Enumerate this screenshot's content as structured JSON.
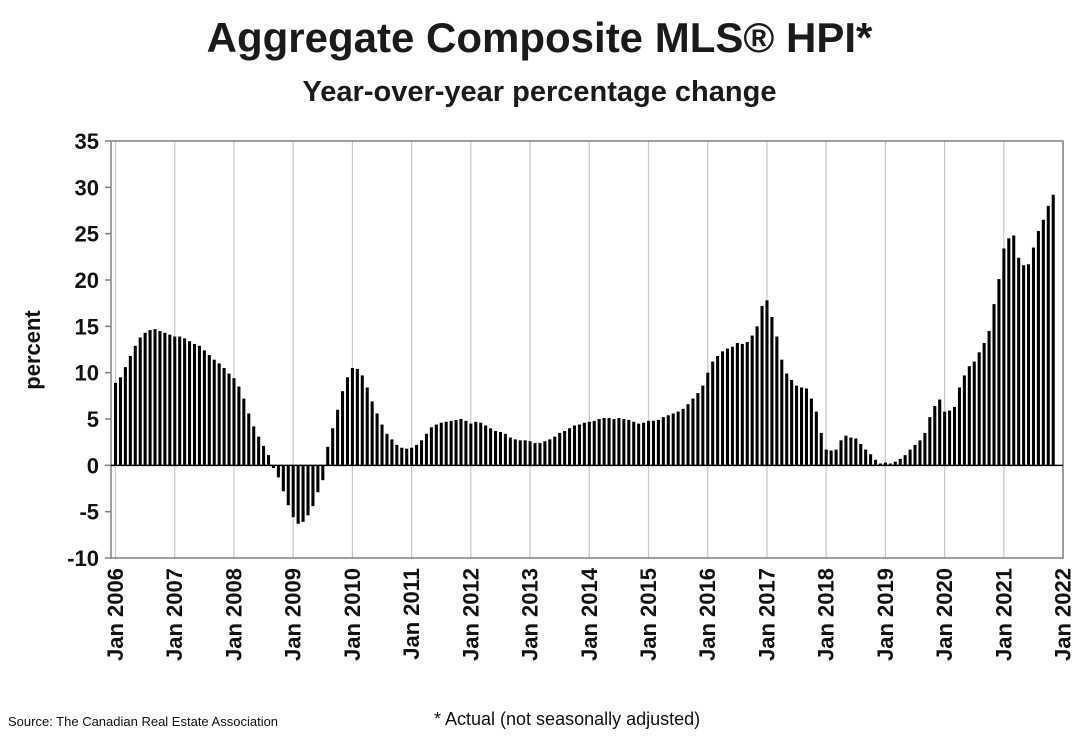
{
  "chart_data": {
    "type": "bar",
    "title": "Aggregate Composite MLS® HPI*",
    "subtitle": "Year-over-year percentage change",
    "ylabel": "percent",
    "xlabel": "",
    "ylim": [
      -10,
      35
    ],
    "yticks": [
      35,
      30,
      25,
      20,
      15,
      10,
      5,
      0,
      -5,
      -10
    ],
    "xtick_labels": [
      "Jan 2006",
      "Jan 2007",
      "Jan 2008",
      "Jan 2009",
      "Jan 2010",
      "Jan 2011",
      "Jan 2012",
      "Jan 2013",
      "Jan 2014",
      "Jan 2015",
      "Jan 2016",
      "Jan 2017",
      "Jan 2018",
      "Jan 2019",
      "Jan 2020",
      "Jan 2021",
      "Jan 2022"
    ],
    "grid": "vertical",
    "start": "Jan 2006",
    "frequency": "monthly",
    "values": [
      8.9,
      9.5,
      10.6,
      11.8,
      12.9,
      13.8,
      14.3,
      14.6,
      14.7,
      14.5,
      14.3,
      14.1,
      13.9,
      13.9,
      13.7,
      13.4,
      13.1,
      12.9,
      12.4,
      11.9,
      11.4,
      11.0,
      10.5,
      9.9,
      9.4,
      8.5,
      7.2,
      5.6,
      4.2,
      3.1,
      2.1,
      1.1,
      -0.3,
      -1.3,
      -2.8,
      -4.3,
      -5.6,
      -6.3,
      -6.1,
      -5.4,
      -4.4,
      -2.9,
      -1.6,
      2.0,
      4.0,
      6.0,
      8.0,
      9.5,
      10.5,
      10.4,
      9.7,
      8.4,
      6.9,
      5.6,
      4.4,
      3.4,
      2.8,
      2.2,
      1.9,
      1.8,
      1.9,
      2.2,
      2.7,
      3.4,
      4.1,
      4.4,
      4.6,
      4.7,
      4.8,
      4.9,
      5.0,
      4.8,
      4.5,
      4.7,
      4.6,
      4.3,
      4.0,
      3.7,
      3.6,
      3.4,
      3.0,
      2.8,
      2.7,
      2.7,
      2.6,
      2.4,
      2.4,
      2.6,
      2.8,
      3.1,
      3.5,
      3.7,
      4.0,
      4.3,
      4.4,
      4.6,
      4.7,
      4.8,
      5.0,
      5.1,
      5.1,
      5.0,
      5.1,
      5.0,
      4.9,
      4.7,
      4.5,
      4.6,
      4.8,
      4.8,
      4.9,
      5.2,
      5.4,
      5.6,
      5.8,
      6.1,
      6.6,
      7.2,
      7.8,
      8.6,
      10.0,
      11.2,
      11.8,
      12.3,
      12.6,
      12.8,
      13.2,
      13.1,
      13.3,
      14.0,
      15.0,
      17.2,
      17.8,
      16.0,
      13.9,
      11.4,
      9.9,
      9.2,
      8.6,
      8.4,
      8.3,
      7.2,
      5.8,
      3.5,
      1.7,
      1.6,
      1.7,
      2.7,
      3.2,
      3.0,
      2.9,
      2.3,
      1.7,
      1.2,
      0.6,
      0.2,
      0.3,
      0.2,
      0.4,
      0.7,
      1.1,
      1.7,
      2.2,
      2.7,
      3.5,
      5.2,
      6.4,
      7.1,
      5.8,
      5.9,
      6.3,
      8.4,
      9.7,
      10.7,
      11.2,
      12.2,
      13.2,
      14.5,
      17.4,
      20.1,
      23.4,
      24.5,
      24.8,
      22.4,
      21.6,
      21.7,
      23.5,
      25.3,
      26.5,
      28.0,
      29.2
    ]
  },
  "source": "Source: The Canadian Real Estate Association",
  "footnote": "* Actual (not seasonally adjusted)"
}
